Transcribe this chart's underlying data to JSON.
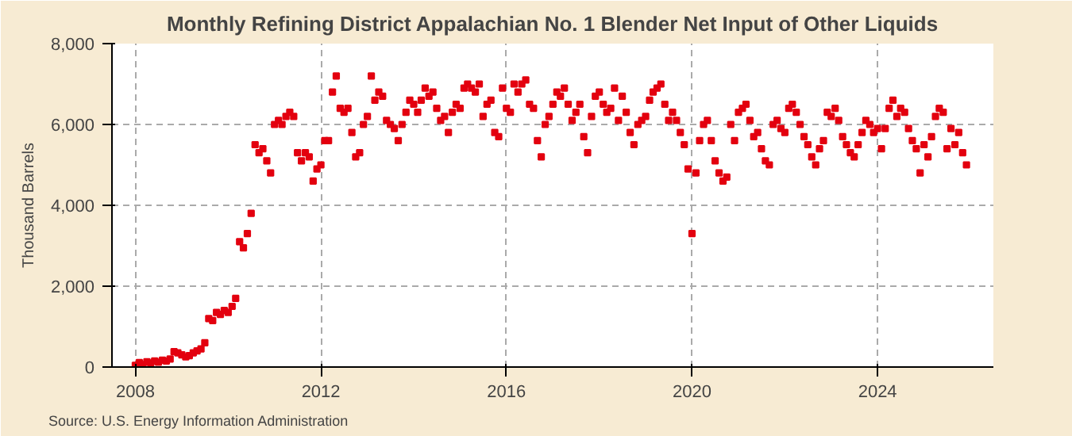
{
  "chart_data": {
    "type": "scatter",
    "title": "Monthly Refining District Appalachian No. 1 Blender Net Input of Other Liquids",
    "ylabel": "Thousand Barrels",
    "annotations": [
      "Source: U.S. Energy Information Administration"
    ],
    "x": [
      "2008-01",
      "2008-02",
      "2008-03",
      "2008-04",
      "2008-05",
      "2008-06",
      "2008-07",
      "2008-08",
      "2008-09",
      "2008-10",
      "2008-11",
      "2008-12",
      "2009-01",
      "2009-02",
      "2009-03",
      "2009-04",
      "2009-05",
      "2009-06",
      "2009-07",
      "2009-08",
      "2009-09",
      "2009-10",
      "2009-11",
      "2009-12",
      "2010-01",
      "2010-02",
      "2010-03",
      "2010-04",
      "2010-05",
      "2010-06",
      "2010-07",
      "2010-08",
      "2010-09",
      "2010-10",
      "2010-11",
      "2010-12",
      "2011-01",
      "2011-02",
      "2011-03",
      "2011-04",
      "2011-05",
      "2011-06",
      "2011-07",
      "2011-08",
      "2011-09",
      "2011-10",
      "2011-11",
      "2011-12",
      "2012-01",
      "2012-02",
      "2012-03",
      "2012-04",
      "2012-05",
      "2012-06",
      "2012-07",
      "2012-08",
      "2012-09",
      "2012-10",
      "2012-11",
      "2012-12",
      "2013-01",
      "2013-02",
      "2013-03",
      "2013-04",
      "2013-05",
      "2013-06",
      "2013-07",
      "2013-08",
      "2013-09",
      "2013-10",
      "2013-11",
      "2013-12",
      "2014-01",
      "2014-02",
      "2014-03",
      "2014-04",
      "2014-05",
      "2014-06",
      "2014-07",
      "2014-08",
      "2014-09",
      "2014-10",
      "2014-11",
      "2014-12",
      "2015-01",
      "2015-02",
      "2015-03",
      "2015-04",
      "2015-05",
      "2015-06",
      "2015-07",
      "2015-08",
      "2015-09",
      "2015-10",
      "2015-11",
      "2015-12",
      "2016-01",
      "2016-02",
      "2016-03",
      "2016-04",
      "2016-05",
      "2016-06",
      "2016-07",
      "2016-08",
      "2016-09",
      "2016-10",
      "2016-11",
      "2016-12",
      "2017-01",
      "2017-02",
      "2017-03",
      "2017-04",
      "2017-05",
      "2017-06",
      "2017-07",
      "2017-08",
      "2017-09",
      "2017-10",
      "2017-11",
      "2017-12",
      "2018-01",
      "2018-02",
      "2018-03",
      "2018-04",
      "2018-05",
      "2018-06",
      "2018-07",
      "2018-08",
      "2018-09",
      "2018-10",
      "2018-11",
      "2018-12",
      "2019-01",
      "2019-02",
      "2019-03",
      "2019-04",
      "2019-05",
      "2019-06",
      "2019-07",
      "2019-08",
      "2019-09",
      "2019-10",
      "2019-11",
      "2019-12",
      "2020-01",
      "2020-02",
      "2020-03",
      "2020-04",
      "2020-05",
      "2020-06",
      "2020-07",
      "2020-08",
      "2020-09",
      "2020-10",
      "2020-11",
      "2020-12",
      "2021-01",
      "2021-02",
      "2021-03",
      "2021-04",
      "2021-05",
      "2021-06",
      "2021-07",
      "2021-08",
      "2021-09",
      "2021-10",
      "2021-11",
      "2021-12",
      "2022-01",
      "2022-02",
      "2022-03",
      "2022-04",
      "2022-05",
      "2022-06",
      "2022-07",
      "2022-08",
      "2022-09",
      "2022-10",
      "2022-11",
      "2022-12",
      "2023-01",
      "2023-02",
      "2023-03",
      "2023-04",
      "2023-05",
      "2023-06",
      "2023-07",
      "2023-08",
      "2023-09",
      "2023-10",
      "2023-11",
      "2023-12",
      "2024-01",
      "2024-02",
      "2024-03",
      "2024-04",
      "2024-05",
      "2024-06",
      "2024-07",
      "2024-08",
      "2024-09",
      "2024-10",
      "2024-11",
      "2024-12",
      "2025-01",
      "2025-02",
      "2025-03",
      "2025-04",
      "2025-05",
      "2025-06",
      "2025-07",
      "2025-08",
      "2025-09",
      "2025-10",
      "2025-11",
      "2025-12"
    ],
    "series": [
      {
        "color": "#e3000f",
        "values": [
          40,
          110,
          60,
          130,
          100,
          150,
          120,
          170,
          150,
          200,
          380,
          350,
          300,
          250,
          280,
          350,
          400,
          450,
          600,
          1200,
          1150,
          1350,
          1300,
          1400,
          1350,
          1500,
          1700,
          3100,
          2950,
          3300,
          3800,
          5500,
          5300,
          5400,
          5100,
          4800,
          6000,
          6100,
          6000,
          6200,
          6300,
          6200,
          5300,
          5100,
          5300,
          5200,
          4600,
          4900,
          5000,
          5600,
          5600,
          6800,
          7200,
          6400,
          6300,
          6400,
          5800,
          5200,
          5300,
          6000,
          6200,
          7200,
          6600,
          6800,
          6700,
          6100,
          6000,
          5900,
          5600,
          6000,
          6300,
          6600,
          6500,
          6300,
          6600,
          6900,
          6700,
          6800,
          6400,
          6100,
          6200,
          5800,
          6300,
          6500,
          6400,
          6900,
          7000,
          6900,
          6800,
          7000,
          6200,
          6500,
          6600,
          5800,
          5700,
          6900,
          6400,
          6300,
          7000,
          6800,
          7000,
          7100,
          6500,
          6400,
          5600,
          5200,
          6000,
          6200,
          6500,
          6800,
          6700,
          6900,
          6500,
          6100,
          6300,
          6500,
          5700,
          5300,
          6200,
          6700,
          6800,
          6500,
          6300,
          6400,
          6900,
          6100,
          6700,
          6300,
          5800,
          5500,
          6000,
          6100,
          6200,
          6600,
          6800,
          6900,
          7000,
          6500,
          6100,
          6300,
          6100,
          5800,
          5500,
          4900,
          3300,
          4800,
          5600,
          6000,
          6100,
          5600,
          5100,
          4800,
          4600,
          4700,
          6000,
          5600,
          6300,
          6400,
          6500,
          6100,
          5700,
          5800,
          5400,
          5100,
          5000,
          6000,
          6100,
          5900,
          5800,
          6400,
          6500,
          6300,
          6000,
          5700,
          5500,
          5200,
          5000,
          5400,
          5600,
          6300,
          6200,
          6400,
          6100,
          5700,
          5500,
          5300,
          5200,
          5500,
          5800,
          6100,
          6000,
          5800,
          5900,
          5400,
          5900,
          6400,
          6600,
          6200,
          6400,
          6300,
          5900,
          5600,
          5400,
          4800,
          5500,
          5200,
          5700,
          6200,
          6400,
          6300,
          5400,
          5900,
          5500,
          5800,
          5300,
          5000
        ]
      }
    ],
    "marker": "square",
    "xlim": [
      "2007-07",
      "2026-07"
    ],
    "xticks": [
      {
        "value": "2008-01",
        "label": "2008"
      },
      {
        "value": "2012-01",
        "label": "2012"
      },
      {
        "value": "2016-01",
        "label": "2016"
      },
      {
        "value": "2020-01",
        "label": "2020"
      },
      {
        "value": "2024-01",
        "label": "2024"
      }
    ],
    "ylim": [
      0,
      8000
    ],
    "yticks": [
      {
        "value": 0,
        "label": "0"
      },
      {
        "value": 2000,
        "label": "2,000"
      },
      {
        "value": 4000,
        "label": "4,000"
      },
      {
        "value": 6000,
        "label": "6,000"
      },
      {
        "value": 8000,
        "label": "8,000"
      }
    ],
    "grid": true
  }
}
